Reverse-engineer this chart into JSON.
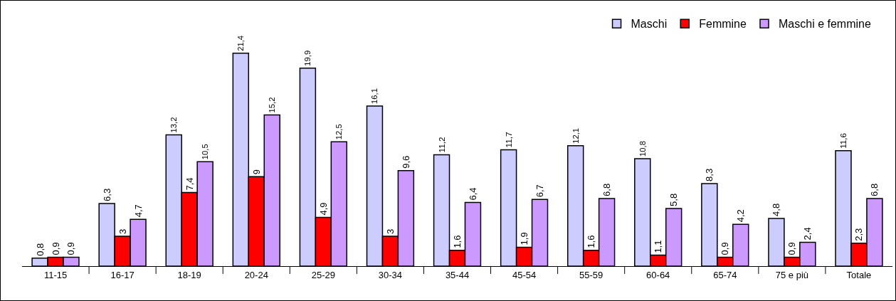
{
  "chart_data": {
    "type": "bar",
    "categories": [
      "11-15",
      "16-17",
      "18-19",
      "20-24",
      "25-29",
      "30-34",
      "35-44",
      "45-54",
      "55-59",
      "60-64",
      "65-74",
      "75 e più",
      "Totale"
    ],
    "series": [
      {
        "name": "Maschi",
        "color": "#ccccff",
        "values": [
          0.8,
          6.3,
          13.2,
          21.4,
          19.9,
          16.1,
          11.2,
          11.7,
          12.1,
          10.8,
          8.3,
          4.8,
          11.6
        ],
        "value_labels": [
          "0,8",
          "6,3",
          "13,2",
          "21,4",
          "19,9",
          "16,1",
          "11,2",
          "11,7",
          "12,1",
          "10,8",
          "8,3",
          "4,8",
          "11,6"
        ]
      },
      {
        "name": "Femmine",
        "color": "#ff0000",
        "values": [
          0.9,
          3,
          7.4,
          9,
          4.9,
          3,
          1.6,
          1.9,
          1.6,
          1.1,
          0.9,
          0.9,
          2.3
        ],
        "value_labels": [
          "0,9",
          "3",
          "7,4",
          "9",
          "4,9",
          "3",
          "1,6",
          "1,9",
          "1,6",
          "1,1",
          "0,9",
          "0,9",
          "2,3"
        ]
      },
      {
        "name": "Maschi e femmine",
        "color": "#cc99ff",
        "values": [
          0.9,
          4.7,
          10.5,
          15.2,
          12.5,
          9.6,
          6.4,
          6.7,
          6.8,
          5.8,
          4.2,
          2.4,
          6.8
        ],
        "value_labels": [
          "0,9",
          "4,7",
          "10,5",
          "15,2",
          "12,5",
          "9,6",
          "6,4",
          "6,7",
          "6,8",
          "5,8",
          "4,2",
          "2,4",
          "6,8"
        ]
      }
    ],
    "tick_labels": "x",
    "grid": false,
    "legend": "top right"
  }
}
